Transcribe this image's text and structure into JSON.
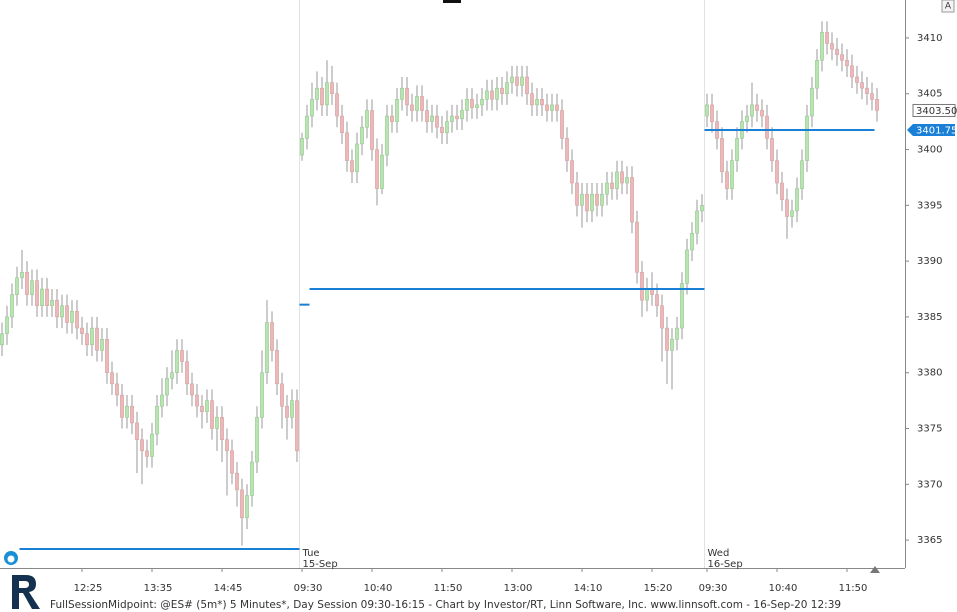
{
  "chart_data": {
    "type": "candlestick",
    "footer": "FullSessionMidpoint: @ES# (5m*) 5 Minutes*, Day Session 09:30-16:15 - Chart by Investor/RT, Linn Software, Inc. www.linnsoft.com - 16-Sep-20 12:39",
    "ylim": [
      3362.5,
      3413.4
    ],
    "yticks": [
      3365,
      3370,
      3375,
      3380,
      3385,
      3390,
      3395,
      3400,
      3405,
      3410
    ],
    "xlim": [
      -0.4,
      180.6
    ],
    "xticks": [
      {
        "value": 16,
        "label": "12:25"
      },
      {
        "value": 30,
        "label": "13:35"
      },
      {
        "value": 44,
        "label": "14:45"
      },
      {
        "value": 60,
        "label": "09:30"
      },
      {
        "value": 74,
        "label": "10:40"
      },
      {
        "value": 88,
        "label": "11:50"
      },
      {
        "value": 102,
        "label": "13:00"
      },
      {
        "value": 116,
        "label": "14:10"
      },
      {
        "value": 130,
        "label": "15:20"
      },
      {
        "value": 141,
        "label": "09:30"
      },
      {
        "value": 155,
        "label": "10:40"
      },
      {
        "value": 169,
        "label": "11:50"
      }
    ],
    "sessions": [
      {
        "start": 60,
        "day": "Tue",
        "date": "15-Sep"
      },
      {
        "start": 141,
        "day": "Wed",
        "date": "16-Sep"
      }
    ],
    "up_color": "#b9e3b3",
    "down_color": "#ebb9b9",
    "line_color": "#1a7fd6",
    "midpoints": [
      {
        "value": 3364.2,
        "start": 4,
        "end": 59
      },
      {
        "value": 3386.1,
        "start": 60,
        "end": 61
      },
      {
        "value": 3387.5,
        "start": 62,
        "end": 140
      },
      {
        "value": 3401.75,
        "start": 141,
        "end": 174,
        "value_label": "3401.75"
      }
    ],
    "last_price": {
      "value": 3403.5,
      "label": "3403.50"
    },
    "candles": [
      [
        3382.5,
        3384.5,
        3381.5,
        3383.5
      ],
      [
        3383.5,
        3386,
        3382.5,
        3385
      ],
      [
        3385,
        3388,
        3384,
        3387
      ],
      [
        3387,
        3389.5,
        3386,
        3388.5
      ],
      [
        3388.5,
        3391,
        3387.5,
        3389
      ],
      [
        3389,
        3390,
        3386,
        3387
      ],
      [
        3387,
        3389.25,
        3386,
        3388.25
      ],
      [
        3388.25,
        3389.25,
        3385,
        3386
      ],
      [
        3386,
        3388.5,
        3385,
        3387.5
      ],
      [
        3387.5,
        3388.5,
        3385,
        3386
      ],
      [
        3386,
        3387.5,
        3385,
        3386.5
      ],
      [
        3386.5,
        3387.5,
        3384,
        3385
      ],
      [
        3385,
        3387,
        3384,
        3386
      ],
      [
        3386,
        3387,
        3383.5,
        3384.5
      ],
      [
        3384.5,
        3386.5,
        3383.5,
        3385.5
      ],
      [
        3385.5,
        3386.5,
        3383,
        3384
      ],
      [
        3384,
        3385,
        3382.5,
        3383.5
      ],
      [
        3383.5,
        3384.5,
        3381.5,
        3382.5
      ],
      [
        3382.5,
        3385,
        3381.5,
        3384
      ],
      [
        3384,
        3385,
        3381,
        3382
      ],
      [
        3382,
        3384,
        3381,
        3383
      ],
      [
        3383,
        3384,
        3379,
        3380
      ],
      [
        3380,
        3381,
        3378,
        3379
      ],
      [
        3379,
        3380,
        3377,
        3378
      ],
      [
        3378,
        3379,
        3375,
        3376
      ],
      [
        3376,
        3378,
        3375,
        3377
      ],
      [
        3377,
        3378,
        3374.5,
        3375.5
      ],
      [
        3375.5,
        3376.5,
        3371,
        3374
      ],
      [
        3374,
        3375,
        3370,
        3373
      ],
      [
        3373,
        3374,
        3371.5,
        3372.5
      ],
      [
        3372.5,
        3375.5,
        3371.5,
        3374.5
      ],
      [
        3374.5,
        3378,
        3373.5,
        3377
      ],
      [
        3377,
        3379.5,
        3376,
        3378
      ],
      [
        3378,
        3380.5,
        3377,
        3379.5
      ],
      [
        3379.5,
        3382,
        3378.5,
        3380
      ],
      [
        3380,
        3383,
        3379,
        3382
      ],
      [
        3382,
        3383,
        3380,
        3381
      ],
      [
        3381,
        3382,
        3378,
        3379
      ],
      [
        3379,
        3380,
        3377,
        3378
      ],
      [
        3378,
        3379,
        3376,
        3377
      ],
      [
        3377,
        3378,
        3375,
        3376.5
      ],
      [
        3376.5,
        3378.5,
        3375.5,
        3377.5
      ],
      [
        3377.5,
        3378.5,
        3374,
        3375
      ],
      [
        3375,
        3377,
        3373,
        3376
      ],
      [
        3376,
        3377,
        3372,
        3374
      ],
      [
        3374,
        3375,
        3369,
        3373
      ],
      [
        3373,
        3374,
        3370,
        3371
      ],
      [
        3371,
        3372,
        3368,
        3369.5
      ],
      [
        3369.5,
        3370.5,
        3364.5,
        3367
      ],
      [
        3367,
        3370,
        3366,
        3369
      ],
      [
        3369,
        3373,
        3368,
        3372
      ],
      [
        3372,
        3377,
        3371,
        3376
      ],
      [
        3376,
        3382,
        3375,
        3380
      ],
      [
        3380,
        3386.5,
        3379,
        3384.5
      ],
      [
        3384.5,
        3385.5,
        3381,
        3382
      ],
      [
        3382,
        3383,
        3378,
        3379
      ],
      [
        3379,
        3380,
        3375,
        3377
      ],
      [
        3377,
        3378,
        3374,
        3376
      ],
      [
        3376,
        3378.5,
        3375,
        3377.5
      ],
      [
        3377.5,
        3378.5,
        3372,
        3373
      ],
      [
        3399.5,
        3401.5,
        3399,
        3401
      ],
      [
        3401,
        3404,
        3400,
        3403
      ],
      [
        3403,
        3406,
        3402,
        3404.5
      ],
      [
        3404.5,
        3407,
        3403.5,
        3405.5
      ],
      [
        3405.5,
        3406.5,
        3403,
        3404
      ],
      [
        3404,
        3408,
        3403,
        3406
      ],
      [
        3406,
        3407.5,
        3404,
        3405
      ],
      [
        3405,
        3406,
        3402,
        3403
      ],
      [
        3403,
        3404,
        3400.5,
        3401.5
      ],
      [
        3401.5,
        3402.5,
        3398,
        3399
      ],
      [
        3399,
        3400,
        3397,
        3398
      ],
      [
        3398,
        3401.5,
        3397,
        3400.5
      ],
      [
        3400.5,
        3403,
        3399.5,
        3402
      ],
      [
        3402,
        3404.5,
        3401,
        3403.5
      ],
      [
        3403.5,
        3404.5,
        3399,
        3400
      ],
      [
        3400,
        3401,
        3395,
        3396.5
      ],
      [
        3396.5,
        3400.5,
        3396,
        3399.5
      ],
      [
        3399.5,
        3404,
        3398.5,
        3403
      ],
      [
        3403,
        3404,
        3401.5,
        3402.5
      ],
      [
        3402.5,
        3405.5,
        3401.5,
        3404.5
      ],
      [
        3404.5,
        3406.5,
        3403.5,
        3405.5
      ],
      [
        3405.5,
        3406.5,
        3403,
        3404
      ],
      [
        3404,
        3405,
        3402.5,
        3403.5
      ],
      [
        3403.5,
        3405.75,
        3402.5,
        3404.75
      ],
      [
        3404.75,
        3405.75,
        3402.5,
        3403.5
      ],
      [
        3403.5,
        3404.5,
        3401.5,
        3402.5
      ],
      [
        3402.5,
        3404,
        3401.5,
        3403
      ],
      [
        3403,
        3404,
        3401,
        3402
      ],
      [
        3402,
        3403,
        3400.5,
        3401.5
      ],
      [
        3401.5,
        3403.5,
        3400.5,
        3402.5
      ],
      [
        3402.5,
        3404,
        3401.5,
        3403
      ],
      [
        3403,
        3404,
        3401.75,
        3402.75
      ],
      [
        3402.75,
        3404.5,
        3401.75,
        3403.5
      ],
      [
        3403.5,
        3405.5,
        3402.5,
        3404.5
      ],
      [
        3404.5,
        3405.5,
        3402.75,
        3403.75
      ],
      [
        3403.75,
        3405,
        3402.75,
        3404
      ],
      [
        3404,
        3405.5,
        3403,
        3404.5
      ],
      [
        3404.5,
        3406.25,
        3403.5,
        3405.25
      ],
      [
        3405.25,
        3406.25,
        3403.5,
        3404.5
      ],
      [
        3404.5,
        3406.5,
        3403.5,
        3405.5
      ],
      [
        3405.5,
        3406.5,
        3404,
        3405
      ],
      [
        3405,
        3407,
        3404,
        3406
      ],
      [
        3406,
        3407.5,
        3405,
        3406.5
      ],
      [
        3406.5,
        3407.5,
        3404.75,
        3405.75
      ],
      [
        3405.75,
        3407.5,
        3404.75,
        3406.5
      ],
      [
        3406.5,
        3407.5,
        3404,
        3405
      ],
      [
        3405,
        3406,
        3403,
        3404
      ],
      [
        3404,
        3405.5,
        3403,
        3404.5
      ],
      [
        3404.5,
        3405.5,
        3403,
        3404
      ],
      [
        3404,
        3405,
        3402.5,
        3403.5
      ],
      [
        3403.5,
        3405,
        3402.5,
        3404
      ],
      [
        3404,
        3405,
        3402.5,
        3403.5
      ],
      [
        3403.5,
        3404.5,
        3400,
        3401
      ],
      [
        3401,
        3402,
        3398,
        3399
      ],
      [
        3399,
        3400,
        3396,
        3397
      ],
      [
        3397,
        3398,
        3394,
        3395
      ],
      [
        3395,
        3397,
        3393,
        3396
      ],
      [
        3396,
        3397,
        3393.5,
        3394.5
      ],
      [
        3394.5,
        3397,
        3393.5,
        3396
      ],
      [
        3396,
        3397,
        3394,
        3395
      ],
      [
        3395,
        3397,
        3394,
        3396
      ],
      [
        3396,
        3398,
        3395,
        3397
      ],
      [
        3397,
        3398,
        3395.5,
        3396.5
      ],
      [
        3396.5,
        3399,
        3395.5,
        3398
      ],
      [
        3398,
        3399,
        3396,
        3397
      ],
      [
        3397,
        3398.5,
        3396,
        3397.5
      ],
      [
        3397.5,
        3398.5,
        3392.5,
        3393.5
      ],
      [
        3393.5,
        3394.5,
        3388,
        3389
      ],
      [
        3389,
        3390,
        3385,
        3386.5
      ],
      [
        3386.5,
        3388.5,
        3385.5,
        3387.5
      ],
      [
        3387.5,
        3389,
        3386,
        3387
      ],
      [
        3387,
        3388,
        3385,
        3386
      ],
      [
        3386,
        3387,
        3381,
        3384
      ],
      [
        3384,
        3385,
        3379,
        3382
      ],
      [
        3382,
        3384,
        3378.5,
        3383
      ],
      [
        3383,
        3385,
        3382,
        3384
      ],
      [
        3384,
        3389,
        3383,
        3388
      ],
      [
        3388,
        3392,
        3387,
        3391
      ],
      [
        3391,
        3393.5,
        3390,
        3392.5
      ],
      [
        3392.5,
        3395.5,
        3391.5,
        3394.5
      ],
      [
        3394.5,
        3396,
        3393.5,
        3395
      ],
      [
        3403,
        3405,
        3402,
        3404
      ],
      [
        3404,
        3405,
        3401.5,
        3402.5
      ],
      [
        3402.5,
        3403.5,
        3400,
        3401
      ],
      [
        3401,
        3402,
        3397,
        3398
      ],
      [
        3398,
        3399,
        3395.5,
        3396.5
      ],
      [
        3396.5,
        3400,
        3395.5,
        3399
      ],
      [
        3399,
        3402,
        3398,
        3401
      ],
      [
        3401,
        3403.5,
        3400,
        3402.5
      ],
      [
        3402.5,
        3404,
        3401.5,
        3403
      ],
      [
        3403,
        3406,
        3402,
        3404
      ],
      [
        3404,
        3405,
        3402.5,
        3403.5
      ],
      [
        3403.5,
        3404.5,
        3402,
        3403
      ],
      [
        3403,
        3404,
        3400,
        3401
      ],
      [
        3401,
        3402,
        3398,
        3399
      ],
      [
        3399,
        3400,
        3396,
        3397
      ],
      [
        3397,
        3398,
        3394.5,
        3395.5
      ],
      [
        3395.5,
        3396.5,
        3392,
        3394
      ],
      [
        3394,
        3395.5,
        3393,
        3394.5
      ],
      [
        3394.5,
        3397.5,
        3393.5,
        3396.5
      ],
      [
        3396.5,
        3400,
        3395.5,
        3399
      ],
      [
        3399,
        3404,
        3398,
        3403
      ],
      [
        3403,
        3406.5,
        3402,
        3405.5
      ],
      [
        3405.5,
        3409,
        3404.5,
        3408
      ],
      [
        3408,
        3411.5,
        3407,
        3410.5
      ],
      [
        3410.5,
        3411.5,
        3408.5,
        3409.5
      ],
      [
        3409.5,
        3410.5,
        3408,
        3409
      ],
      [
        3409,
        3410,
        3407.5,
        3408.5
      ],
      [
        3408.5,
        3409.5,
        3407,
        3408
      ],
      [
        3408,
        3409,
        3406.5,
        3407.5
      ],
      [
        3407.5,
        3408.5,
        3405.5,
        3406.5
      ],
      [
        3406.5,
        3407.5,
        3405,
        3406
      ],
      [
        3406,
        3407,
        3404.5,
        3405.5
      ],
      [
        3405.5,
        3406.5,
        3404,
        3405
      ],
      [
        3405,
        3406,
        3403.5,
        3404.5
      ],
      [
        3404.5,
        3405.5,
        3402.5,
        3403.5
      ]
    ]
  }
}
